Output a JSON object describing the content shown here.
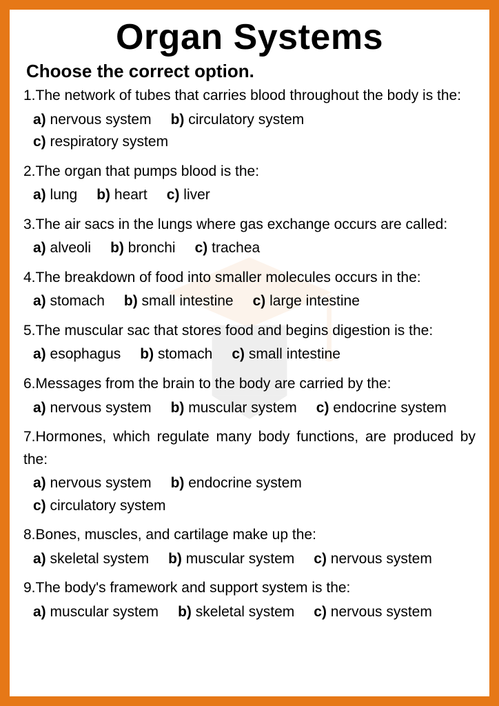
{
  "colors": {
    "border": "#e67817",
    "text": "#000000",
    "background": "#ffffff",
    "watermark_cap": "#e67817",
    "watermark_book": "#333333"
  },
  "title": "Organ Systems",
  "instruction": "Choose the correct option.",
  "questions": [
    {
      "num": "1.",
      "text": "The network of tubes that carries blood throughout the body is the:",
      "options": [
        {
          "l": "a)",
          "t": "nervous system"
        },
        {
          "l": "b)",
          "t": "circulatory system"
        },
        {
          "l": "c)",
          "t": "respiratory system"
        }
      ],
      "wrap_after": 2
    },
    {
      "num": "2.",
      "text": "The organ that pumps blood is the:",
      "options": [
        {
          "l": "a)",
          "t": "lung"
        },
        {
          "l": "b)",
          "t": "heart"
        },
        {
          "l": "c)",
          "t": "liver"
        }
      ],
      "wrap_after": 3
    },
    {
      "num": "3.",
      "text": "The air sacs in the lungs where gas exchange occurs are called:",
      "options": [
        {
          "l": "a)",
          "t": "alveoli"
        },
        {
          "l": "b)",
          "t": "bronchi"
        },
        {
          "l": "c)",
          "t": "trachea"
        }
      ],
      "wrap_after": 3
    },
    {
      "num": "4.",
      "text": "The breakdown of food into smaller molecules occurs in the:",
      "options": [
        {
          "l": "a)",
          "t": "stomach"
        },
        {
          "l": "b)",
          "t": "small intestine"
        },
        {
          "l": "c)",
          "t": "large intestine"
        }
      ],
      "wrap_after": 3
    },
    {
      "num": "5.",
      "text": "The muscular sac that stores food and begins digestion is the:",
      "options": [
        {
          "l": "a)",
          "t": "esophagus"
        },
        {
          "l": "b)",
          "t": "stomach"
        },
        {
          "l": "c)",
          "t": "small intestine"
        }
      ],
      "wrap_after": 3
    },
    {
      "num": "6.",
      "text": "Messages from the brain to the body are carried by the:",
      "options": [
        {
          "l": "a)",
          "t": "nervous system"
        },
        {
          "l": "b)",
          "t": "muscular system"
        },
        {
          "l": "c)",
          "t": "endocrine system"
        }
      ],
      "wrap_after": 3
    },
    {
      "num": "7.",
      "text": "Hormones, which regulate many body functions, are produced by the:",
      "options": [
        {
          "l": "a)",
          "t": "nervous system"
        },
        {
          "l": "b)",
          "t": "endocrine system"
        },
        {
          "l": "c)",
          "t": "circulatory system"
        }
      ],
      "wrap_after": 2
    },
    {
      "num": "8.",
      "text": "Bones, muscles, and cartilage make up the:",
      "options": [
        {
          "l": "a)",
          "t": "skeletal system"
        },
        {
          "l": "b)",
          "t": "muscular system"
        },
        {
          "l": "c)",
          "t": "nervous system"
        }
      ],
      "wrap_after": 3
    },
    {
      "num": "9.",
      "text": "The body's framework and support system is the:",
      "options": [
        {
          "l": "a)",
          "t": "muscular system"
        },
        {
          "l": "b)",
          "t": "skeletal system"
        },
        {
          "l": "c)",
          "t": "nervous system"
        }
      ],
      "wrap_after": 3
    }
  ]
}
